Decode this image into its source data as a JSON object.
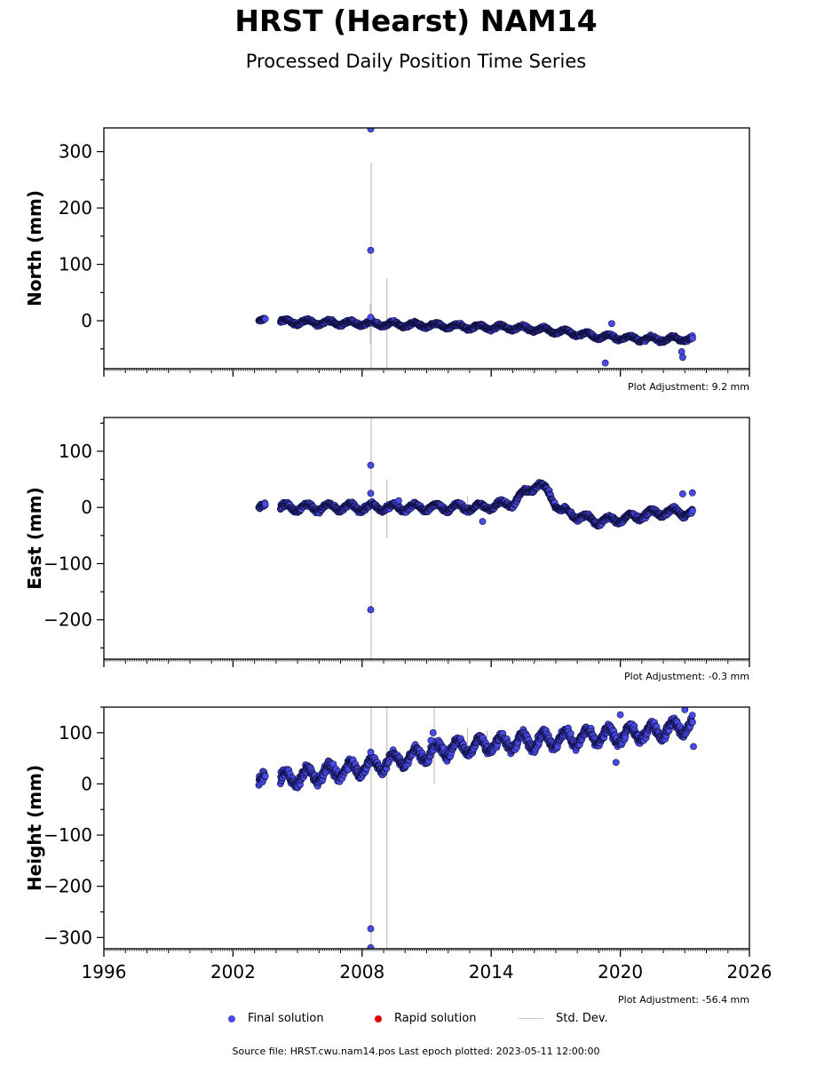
{
  "figure": {
    "title": "HRST (Hearst) NAM14",
    "subtitle": "Processed Daily Position Time Series",
    "source_text": "Source file: HRST.cwu.nam14.pos  Last epoch plotted: 2023-05-11 12:00:00"
  },
  "legend": {
    "final": "Final solution",
    "rapid": "Rapid solution",
    "stddev": "Std. Dev."
  },
  "colors": {
    "final_fill": "#4a4ae8",
    "final_edge": "#101040",
    "rapid": "#e00000",
    "stddev": "#b0b0b0"
  },
  "chart_data": [
    {
      "type": "scatter",
      "id": "north",
      "ylabel": "North (mm)",
      "adjustment": "Plot Adjustment: 9.2 mm",
      "xlim": [
        1996,
        2026
      ],
      "ylim": [
        -85,
        342
      ],
      "yticks": [
        0,
        100,
        200,
        300
      ],
      "ytick_labels": [
        "0",
        "100",
        "200",
        "300"
      ],
      "xticks": [
        1996,
        2002,
        2008,
        2014,
        2020,
        2026
      ],
      "xtick_labels": [],
      "trend": [
        [
          2003.2,
          -1
        ],
        [
          2008.4,
          -5
        ],
        [
          2013.0,
          -11
        ],
        [
          2015.5,
          -13
        ],
        [
          2017.0,
          -18
        ],
        [
          2019.0,
          -28
        ],
        [
          2021.5,
          -33
        ],
        [
          2023.36,
          -32
        ]
      ],
      "osc_amp": 4,
      "outliers": [
        [
          2008.4,
          340
        ],
        [
          2008.4,
          125
        ],
        [
          2008.4,
          6
        ],
        [
          2019.6,
          -5
        ],
        [
          2022.85,
          -55
        ],
        [
          2022.9,
          -65
        ],
        [
          2019.3,
          -75
        ]
      ],
      "error_bars": [
        [
          2008.42,
          280,
          -85
        ],
        [
          2009.15,
          75,
          -85
        ],
        [
          2008.38,
          30,
          -40
        ]
      ],
      "gaps": [
        [
          2003.5,
          2004.2
        ]
      ]
    },
    {
      "type": "scatter",
      "id": "east",
      "ylabel": "East (mm)",
      "adjustment": "Plot Adjustment: -0.3 mm",
      "xlim": [
        1996,
        2026
      ],
      "ylim": [
        -270,
        160
      ],
      "yticks": [
        -200,
        -100,
        0,
        100
      ],
      "ytick_labels": [
        "−200",
        "−100",
        "0",
        "100"
      ],
      "xticks": [
        1996,
        2002,
        2008,
        2014,
        2020,
        2026
      ],
      "xtick_labels": [],
      "trend": [
        [
          2003.2,
          0
        ],
        [
          2010.0,
          0
        ],
        [
          2013.5,
          0
        ],
        [
          2015.0,
          8
        ],
        [
          2015.7,
          30
        ],
        [
          2016.2,
          42
        ],
        [
          2016.7,
          25
        ],
        [
          2017.2,
          -5
        ],
        [
          2018.0,
          -15
        ],
        [
          2019.0,
          -25
        ],
        [
          2020.5,
          -18
        ],
        [
          2021.5,
          -10
        ],
        [
          2022.5,
          -8
        ],
        [
          2023.36,
          -10
        ]
      ],
      "osc_amp": 6,
      "outliers": [
        [
          2008.4,
          75
        ],
        [
          2008.4,
          25
        ],
        [
          2008.4,
          -182
        ],
        [
          2009.7,
          12
        ],
        [
          2013.6,
          -25
        ],
        [
          2022.9,
          24
        ],
        [
          2023.35,
          26
        ]
      ],
      "error_bars": [
        [
          2008.42,
          160,
          -270
        ],
        [
          2009.15,
          50,
          -55
        ],
        [
          2012.9,
          20,
          -5
        ]
      ],
      "gaps": [
        [
          2003.5,
          2004.2
        ]
      ]
    },
    {
      "type": "scatter",
      "id": "height",
      "ylabel": "Height (mm)",
      "adjustment": "Plot Adjustment: -56.4 mm",
      "xlim": [
        1996,
        2026
      ],
      "ylim": [
        -322,
        150
      ],
      "yticks": [
        -300,
        -200,
        -100,
        0,
        100
      ],
      "ytick_labels": [
        "−300",
        "−200",
        "−100",
        "0",
        "100"
      ],
      "xticks": [
        1996,
        2002,
        2008,
        2014,
        2020,
        2026
      ],
      "xtick_labels": [
        "1996",
        "2002",
        "2008",
        "2014",
        "2020",
        "2026"
      ],
      "trend": [
        [
          2003.2,
          0
        ],
        [
          2006.0,
          20
        ],
        [
          2008.4,
          35
        ],
        [
          2010.0,
          50
        ],
        [
          2012.0,
          70
        ],
        [
          2014.0,
          78
        ],
        [
          2016.0,
          85
        ],
        [
          2018.0,
          90
        ],
        [
          2020.0,
          95
        ],
        [
          2022.0,
          105
        ],
        [
          2023.36,
          115
        ]
      ],
      "osc_amp": 14,
      "outliers": [
        [
          2008.4,
          -283
        ],
        [
          2008.4,
          -320
        ],
        [
          2008.4,
          62
        ],
        [
          2011.2,
          85
        ],
        [
          2011.3,
          100
        ],
        [
          2019.8,
          42
        ],
        [
          2023.4,
          73
        ],
        [
          2023.0,
          145
        ],
        [
          2020.0,
          135
        ]
      ],
      "error_bars": [
        [
          2008.42,
          150,
          -322
        ],
        [
          2009.15,
          150,
          -322
        ],
        [
          2011.35,
          150,
          0
        ],
        [
          2012.9,
          110,
          60
        ],
        [
          2013.8,
          105,
          60
        ]
      ],
      "gaps": [
        [
          2003.5,
          2004.2
        ]
      ]
    }
  ]
}
